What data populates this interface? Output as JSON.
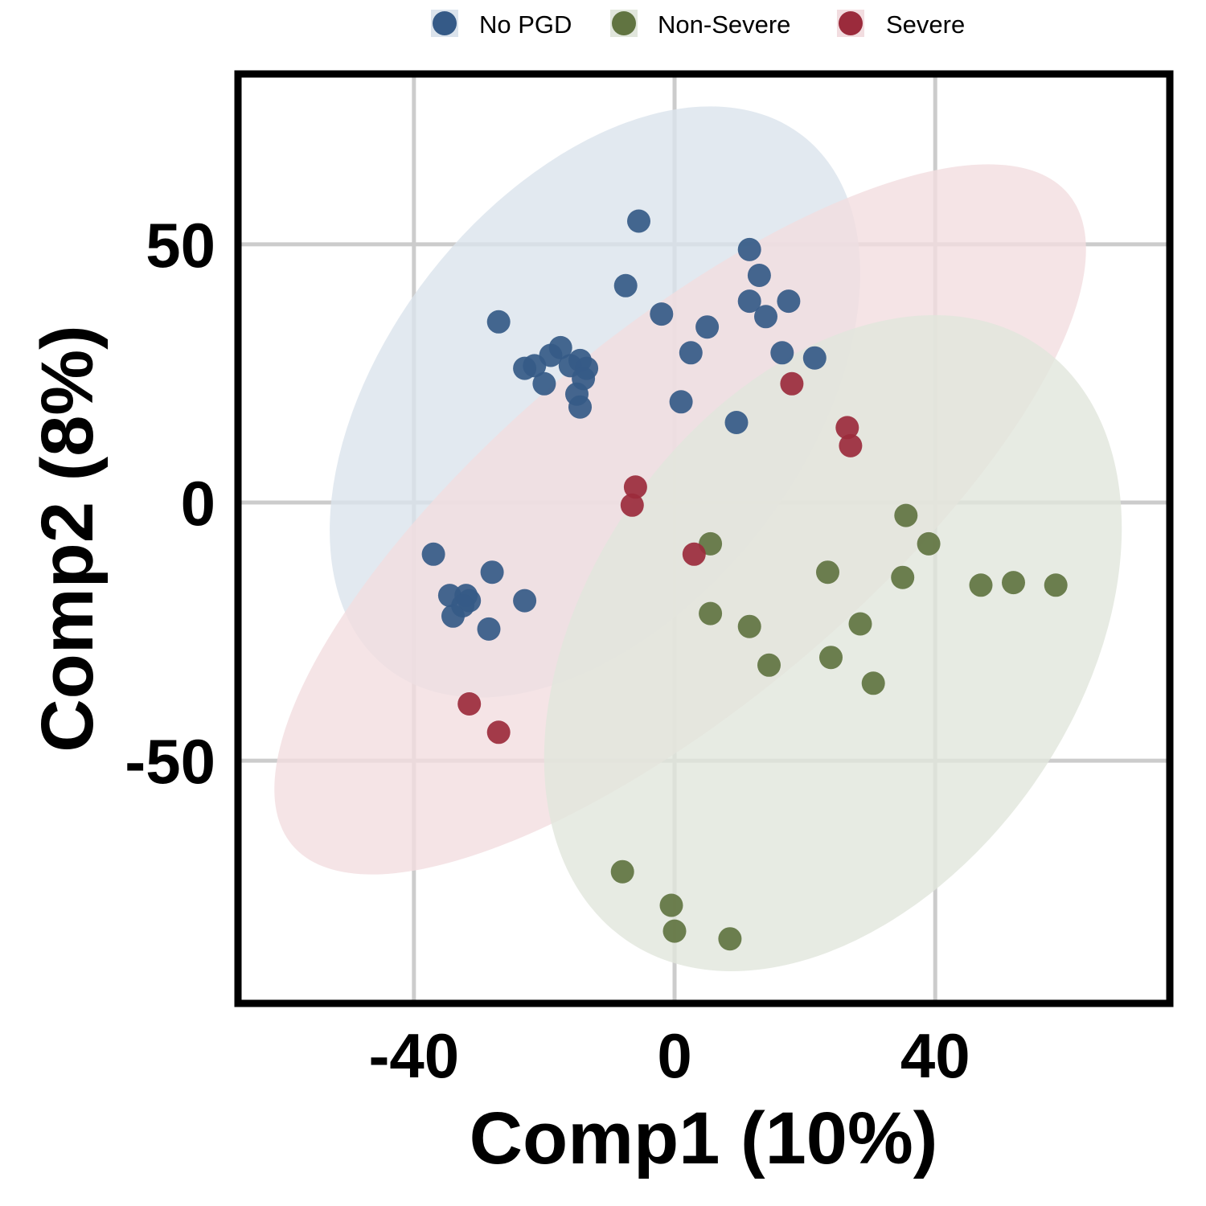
{
  "chart_data": {
    "type": "scatter",
    "xlabel": "Comp1 (10%)",
    "ylabel": "Comp2 (8%)",
    "xlim": [
      -67,
      76
    ],
    "ylim": [
      -97,
      83
    ],
    "xticks": [
      -40,
      0,
      40
    ],
    "yticks": [
      50,
      0,
      -50
    ],
    "grid": true,
    "legend_position": "top",
    "series": [
      {
        "name": "No PGD",
        "color": "#355A87",
        "ellipse_color": "#DBE3EC",
        "points": [
          [
            -5.5,
            54.5
          ],
          [
            11.5,
            49
          ],
          [
            13,
            44
          ],
          [
            -7.5,
            42
          ],
          [
            -2,
            36.5
          ],
          [
            11.5,
            39
          ],
          [
            5,
            34
          ],
          [
            -27,
            35
          ],
          [
            -17.5,
            30
          ],
          [
            -19,
            28.5
          ],
          [
            -21.5,
            26.5
          ],
          [
            -23,
            26
          ],
          [
            -16,
            26.5
          ],
          [
            -14.5,
            27.5
          ],
          [
            -13.5,
            26
          ],
          [
            -14,
            24
          ],
          [
            -20,
            23
          ],
          [
            -15,
            21
          ],
          [
            -14.5,
            18.5
          ],
          [
            2.5,
            29
          ],
          [
            21.5,
            28
          ],
          [
            17.5,
            39
          ],
          [
            14,
            36
          ],
          [
            16.5,
            29
          ],
          [
            1,
            19.5
          ],
          [
            9.5,
            15.5
          ],
          [
            -37,
            -10
          ],
          [
            -28,
            -13.5
          ],
          [
            -23,
            -19
          ],
          [
            -32,
            -18
          ],
          [
            -34.5,
            -18
          ],
          [
            -31.5,
            -19
          ],
          [
            -32.5,
            -20
          ],
          [
            -34,
            -22
          ],
          [
            -28.5,
            -24.5
          ]
        ]
      },
      {
        "name": "Non-Severe",
        "color": "#617441",
        "ellipse_color": "#E1E6DC",
        "points": [
          [
            35.5,
            -2.5
          ],
          [
            39,
            -8
          ],
          [
            5.5,
            -8
          ],
          [
            23.5,
            -13.5
          ],
          [
            35,
            -14.5
          ],
          [
            47,
            -16
          ],
          [
            52,
            -15.5
          ],
          [
            58.5,
            -16
          ],
          [
            5.5,
            -21.5
          ],
          [
            28.5,
            -23.5
          ],
          [
            11.5,
            -24
          ],
          [
            24,
            -30
          ],
          [
            14.5,
            -31.5
          ],
          [
            30.5,
            -35
          ],
          [
            -8,
            -71.5
          ],
          [
            -0.5,
            -78
          ],
          [
            0,
            -83
          ],
          [
            8.5,
            -84.5
          ]
        ]
      },
      {
        "name": "Severe",
        "color": "#9B2B3C",
        "ellipse_color": "#F2DDE0",
        "points": [
          [
            18,
            23
          ],
          [
            26.5,
            14.5
          ],
          [
            27,
            11
          ],
          [
            -6,
            3
          ],
          [
            -6.5,
            -0.5
          ],
          [
            3,
            -10
          ],
          [
            -31.5,
            -39
          ],
          [
            -27,
            -44.5
          ]
        ]
      }
    ]
  }
}
